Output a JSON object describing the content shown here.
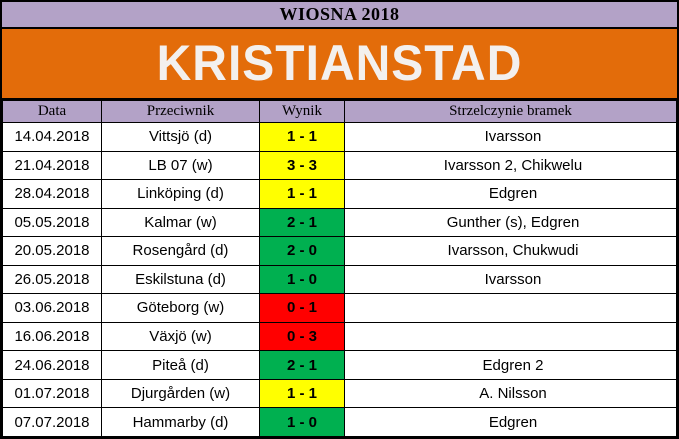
{
  "title_bar": {
    "label": "WIOSNA 2018"
  },
  "banner": {
    "team": "KRISTIANSTAD"
  },
  "colors": {
    "title_bg": "#B3A2C7",
    "header_bg": "#B3A2C7",
    "banner_bg": "#E36C0A",
    "banner_text": "#F3F0EE",
    "win": "#00B050",
    "draw": "#FFFF00",
    "loss": "#FF0000"
  },
  "table": {
    "columns": [
      "Data",
      "Przeciwnik",
      "Wynik",
      "Strzelczynie bramek"
    ],
    "rows": [
      {
        "date": "14.04.2018",
        "opponent": "Vittsjö (d)",
        "score": "1 - 1",
        "result": "draw",
        "scorers": "Ivarsson"
      },
      {
        "date": "21.04.2018",
        "opponent": "LB 07 (w)",
        "score": "3 - 3",
        "result": "draw",
        "scorers": "Ivarsson 2, Chikwelu"
      },
      {
        "date": "28.04.2018",
        "opponent": "Linköping (d)",
        "score": "1 - 1",
        "result": "draw",
        "scorers": "Edgren"
      },
      {
        "date": "05.05.2018",
        "opponent": "Kalmar (w)",
        "score": "2 - 1",
        "result": "win",
        "scorers": "Gunther (s), Edgren"
      },
      {
        "date": "20.05.2018",
        "opponent": "Rosengård (d)",
        "score": "2 - 0",
        "result": "win",
        "scorers": "Ivarsson, Chukwudi"
      },
      {
        "date": "26.05.2018",
        "opponent": "Eskilstuna (d)",
        "score": "1 - 0",
        "result": "win",
        "scorers": "Ivarsson"
      },
      {
        "date": "03.06.2018",
        "opponent": "Göteborg (w)",
        "score": "0 - 1",
        "result": "loss",
        "scorers": ""
      },
      {
        "date": "16.06.2018",
        "opponent": "Växjö (w)",
        "score": "0 - 3",
        "result": "loss",
        "scorers": ""
      },
      {
        "date": "24.06.2018",
        "opponent": "Piteå (d)",
        "score": "2 - 1",
        "result": "win",
        "scorers": "Edgren 2"
      },
      {
        "date": "01.07.2018",
        "opponent": "Djurgården (w)",
        "score": "1 - 1",
        "result": "draw",
        "scorers": "A. Nilsson"
      },
      {
        "date": "07.07.2018",
        "opponent": "Hammarby (d)",
        "score": "1 - 0",
        "result": "win",
        "scorers": "Edgren"
      }
    ]
  }
}
